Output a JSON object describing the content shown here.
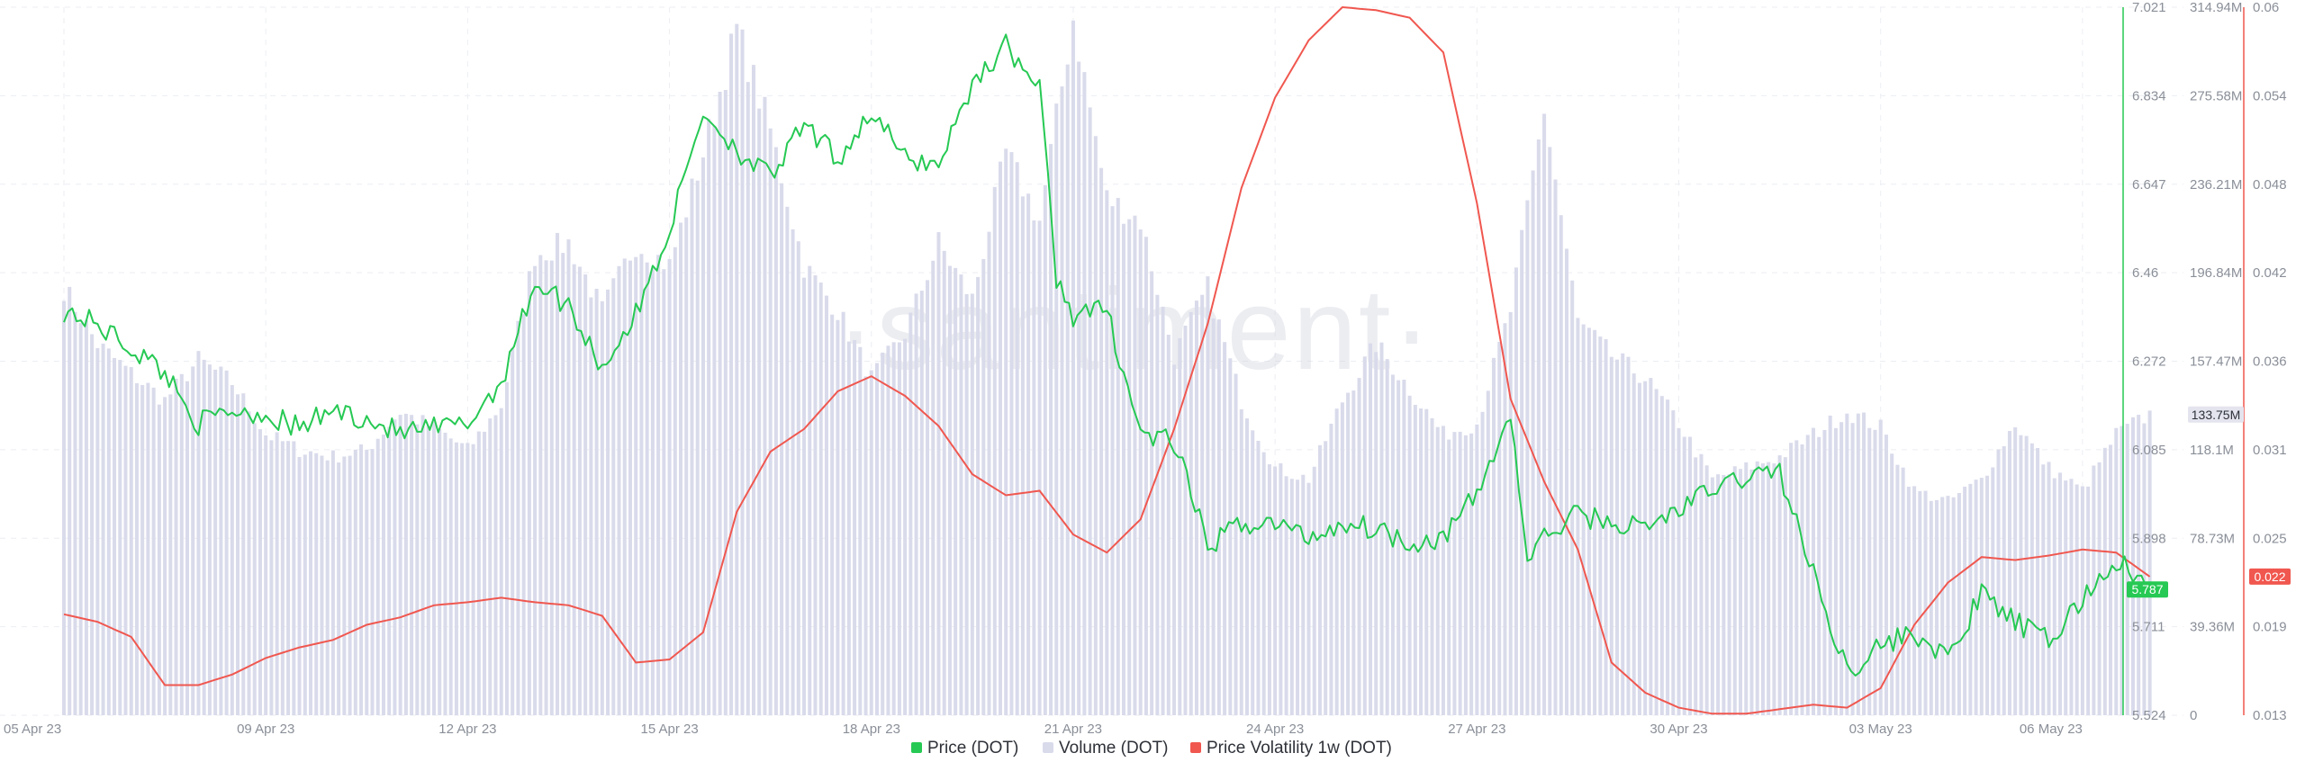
{
  "watermark": "·santiment·",
  "chart_data": {
    "type": "line",
    "x_tick_labels": [
      "05 Apr 23",
      "09 Apr 23",
      "12 Apr 23",
      "15 Apr 23",
      "18 Apr 23",
      "21 Apr 23",
      "24 Apr 23",
      "27 Apr 23",
      "30 Apr 23",
      "03 May 23",
      "06 May 23"
    ],
    "x_range": [
      "2023-04-05",
      "2023-05-06"
    ],
    "grid": true,
    "legend_position": "bottom-center",
    "series": [
      {
        "name": "Price (DOT)",
        "type": "line",
        "axis": "price",
        "color": "#26c953",
        "last_value_label": "5.787",
        "y_range": [
          5.524,
          7.021
        ],
        "y_tick_labels": [
          "5.524",
          "5.711",
          "5.898",
          "6.085",
          "6.272",
          "6.46",
          "6.647",
          "6.834",
          "7.021"
        ],
        "points": [
          [
            "2023-04-05",
            6.38
          ],
          [
            "2023-04-05T12:00",
            6.35
          ],
          [
            "2023-04-06",
            6.3
          ],
          [
            "2023-04-06T12:00",
            6.25
          ],
          [
            "2023-04-07",
            6.14
          ],
          [
            "2023-04-07T12:00",
            6.17
          ],
          [
            "2023-04-08",
            6.16
          ],
          [
            "2023-04-08T12:00",
            6.13
          ],
          [
            "2023-04-09",
            6.17
          ],
          [
            "2023-04-09T12:00",
            6.15
          ],
          [
            "2023-04-10",
            6.12
          ],
          [
            "2023-04-10T12:00",
            6.13
          ],
          [
            "2023-04-11",
            6.14
          ],
          [
            "2023-04-11T12:00",
            6.23
          ],
          [
            "2023-04-12",
            6.44
          ],
          [
            "2023-04-12T12:00",
            6.39
          ],
          [
            "2023-04-13",
            6.26
          ],
          [
            "2023-04-13T12:00",
            6.37
          ],
          [
            "2023-04-14",
            6.55
          ],
          [
            "2023-04-14T12:00",
            6.8
          ],
          [
            "2023-04-15",
            6.72
          ],
          [
            "2023-04-15T12:00",
            6.66
          ],
          [
            "2023-04-16",
            6.77
          ],
          [
            "2023-04-16T12:00",
            6.7
          ],
          [
            "2023-04-17",
            6.8
          ],
          [
            "2023-04-17T12:00",
            6.7
          ],
          [
            "2023-04-18",
            6.69
          ],
          [
            "2023-04-18T12:00",
            6.86
          ],
          [
            "2023-04-19",
            6.94
          ],
          [
            "2023-04-19T12:00",
            6.85
          ],
          [
            "2023-04-19T18:00",
            6.45
          ],
          [
            "2023-04-20",
            6.37
          ],
          [
            "2023-04-20T12:00",
            6.38
          ],
          [
            "2023-04-21",
            6.12
          ],
          [
            "2023-04-21T12:00",
            6.1
          ],
          [
            "2023-04-22",
            5.88
          ],
          [
            "2023-04-22T12:00",
            5.93
          ],
          [
            "2023-04-23",
            5.93
          ],
          [
            "2023-04-23T12:00",
            5.9
          ],
          [
            "2023-04-24",
            5.93
          ],
          [
            "2023-04-24T12:00",
            5.92
          ],
          [
            "2023-04-25",
            5.89
          ],
          [
            "2023-04-25T12:00",
            5.9
          ],
          [
            "2023-04-26",
            5.99
          ],
          [
            "2023-04-26T12:00",
            6.16
          ],
          [
            "2023-04-26T18:00",
            5.85
          ],
          [
            "2023-04-27",
            5.9
          ],
          [
            "2023-04-27T12:00",
            5.95
          ],
          [
            "2023-04-28",
            5.93
          ],
          [
            "2023-04-28T12:00",
            5.92
          ],
          [
            "2023-04-29",
            5.96
          ],
          [
            "2023-04-29T12:00",
            6.0
          ],
          [
            "2023-04-30",
            6.03
          ],
          [
            "2023-04-30T12:00",
            6.04
          ],
          [
            "2023-05-01",
            5.82
          ],
          [
            "2023-05-01T12:00",
            5.62
          ],
          [
            "2023-05-02",
            5.67
          ],
          [
            "2023-05-02T12:00",
            5.7
          ],
          [
            "2023-05-03",
            5.64
          ],
          [
            "2023-05-03T12:00",
            5.78
          ],
          [
            "2023-05-04",
            5.72
          ],
          [
            "2023-05-04T12:00",
            5.68
          ],
          [
            "2023-05-05",
            5.77
          ],
          [
            "2023-05-05T12:00",
            5.85
          ],
          [
            "2023-05-06",
            5.79
          ]
        ]
      },
      {
        "name": "Volume (DOT)",
        "type": "bar",
        "axis": "volume",
        "color": "#d9dbeb",
        "last_value_label": "133.75M",
        "y_range": [
          0,
          314940000
        ],
        "y_tick_labels": [
          "0",
          "39.36M",
          "78.73M",
          "118.1M",
          "157.47M",
          "196.84M",
          "236.21M",
          "275.58M",
          "314.94M"
        ],
        "points": [
          [
            "2023-04-05",
            190000000
          ],
          [
            "2023-04-05T12:00",
            165000000
          ],
          [
            "2023-04-06",
            152000000
          ],
          [
            "2023-04-06T12:00",
            140000000
          ],
          [
            "2023-04-07",
            158000000
          ],
          [
            "2023-04-07T12:00",
            148000000
          ],
          [
            "2023-04-08",
            125000000
          ],
          [
            "2023-04-08T12:00",
            118000000
          ],
          [
            "2023-04-09",
            115000000
          ],
          [
            "2023-04-09T12:00",
            118000000
          ],
          [
            "2023-04-10",
            135000000
          ],
          [
            "2023-04-10T12:00",
            128000000
          ],
          [
            "2023-04-11",
            118000000
          ],
          [
            "2023-04-11T12:00",
            138000000
          ],
          [
            "2023-04-12",
            205000000
          ],
          [
            "2023-04-12T12:00",
            210000000
          ],
          [
            "2023-04-13",
            180000000
          ],
          [
            "2023-04-13T12:00",
            210000000
          ],
          [
            "2023-04-14",
            200000000
          ],
          [
            "2023-04-14T12:00",
            250000000
          ],
          [
            "2023-04-15",
            305000000
          ],
          [
            "2023-04-15T12:00",
            260000000
          ],
          [
            "2023-04-16",
            200000000
          ],
          [
            "2023-04-16T12:00",
            180000000
          ],
          [
            "2023-04-17",
            150000000
          ],
          [
            "2023-04-17T12:00",
            170000000
          ],
          [
            "2023-04-18",
            210000000
          ],
          [
            "2023-04-18T12:00",
            185000000
          ],
          [
            "2023-04-19",
            250000000
          ],
          [
            "2023-04-19T12:00",
            220000000
          ],
          [
            "2023-04-20",
            310000000
          ],
          [
            "2023-04-20T12:00",
            230000000
          ],
          [
            "2023-04-21",
            220000000
          ],
          [
            "2023-04-21T12:00",
            160000000
          ],
          [
            "2023-04-22",
            190000000
          ],
          [
            "2023-04-22T12:00",
            140000000
          ],
          [
            "2023-04-23",
            110000000
          ],
          [
            "2023-04-23T12:00",
            105000000
          ],
          [
            "2023-04-24",
            140000000
          ],
          [
            "2023-04-24T12:00",
            165000000
          ],
          [
            "2023-04-25",
            145000000
          ],
          [
            "2023-04-25T12:00",
            125000000
          ],
          [
            "2023-04-26",
            130000000
          ],
          [
            "2023-04-26T12:00",
            180000000
          ],
          [
            "2023-04-27",
            270000000
          ],
          [
            "2023-04-27T12:00",
            175000000
          ],
          [
            "2023-04-28",
            160000000
          ],
          [
            "2023-04-28T12:00",
            150000000
          ],
          [
            "2023-04-29",
            130000000
          ],
          [
            "2023-04-29T12:00",
            105000000
          ],
          [
            "2023-04-30",
            110000000
          ],
          [
            "2023-04-30T12:00",
            115000000
          ],
          [
            "2023-05-01",
            125000000
          ],
          [
            "2023-05-01T12:00",
            135000000
          ],
          [
            "2023-05-02",
            128000000
          ],
          [
            "2023-05-02T12:00",
            100000000
          ],
          [
            "2023-05-03",
            95000000
          ],
          [
            "2023-05-03T12:00",
            105000000
          ],
          [
            "2023-05-04",
            130000000
          ],
          [
            "2023-05-04T12:00",
            110000000
          ],
          [
            "2023-05-05",
            100000000
          ],
          [
            "2023-05-05T12:00",
            125000000
          ],
          [
            "2023-05-06",
            133750000
          ]
        ]
      },
      {
        "name": "Price Volatility 1w (DOT)",
        "type": "line",
        "axis": "volatility",
        "color": "#f0574f",
        "last_value_label": "0.022",
        "y_range": [
          0.013,
          0.06
        ],
        "y_tick_labels": [
          "0.013",
          "0.019",
          "0.025",
          "0.031",
          "0.036",
          "0.042",
          "0.048",
          "0.054",
          "0.06"
        ],
        "points": [
          [
            "2023-04-05",
            0.0197
          ],
          [
            "2023-04-05T12:00",
            0.0192
          ],
          [
            "2023-04-06",
            0.0182
          ],
          [
            "2023-04-06T12:00",
            0.015
          ],
          [
            "2023-04-07",
            0.015
          ],
          [
            "2023-04-07T12:00",
            0.0157
          ],
          [
            "2023-04-08",
            0.0168
          ],
          [
            "2023-04-08T12:00",
            0.0175
          ],
          [
            "2023-04-09",
            0.018
          ],
          [
            "2023-04-09T12:00",
            0.019
          ],
          [
            "2023-04-10",
            0.0195
          ],
          [
            "2023-04-10T12:00",
            0.0203
          ],
          [
            "2023-04-11",
            0.0205
          ],
          [
            "2023-04-11T12:00",
            0.0208
          ],
          [
            "2023-04-12",
            0.0205
          ],
          [
            "2023-04-12T12:00",
            0.0203
          ],
          [
            "2023-04-13",
            0.0196
          ],
          [
            "2023-04-13T12:00",
            0.0165
          ],
          [
            "2023-04-14",
            0.0167
          ],
          [
            "2023-04-14T12:00",
            0.0185
          ],
          [
            "2023-04-15",
            0.0265
          ],
          [
            "2023-04-15T12:00",
            0.0305
          ],
          [
            "2023-04-16",
            0.032
          ],
          [
            "2023-04-16T12:00",
            0.0345
          ],
          [
            "2023-04-17",
            0.0355
          ],
          [
            "2023-04-17T12:00",
            0.0342
          ],
          [
            "2023-04-18",
            0.0322
          ],
          [
            "2023-04-18T12:00",
            0.029
          ],
          [
            "2023-04-19",
            0.0276
          ],
          [
            "2023-04-19T12:00",
            0.0279
          ],
          [
            "2023-04-20",
            0.025
          ],
          [
            "2023-04-20T12:00",
            0.0238
          ],
          [
            "2023-04-21",
            0.026
          ],
          [
            "2023-04-21T12:00",
            0.032
          ],
          [
            "2023-04-22",
            0.039
          ],
          [
            "2023-04-22T12:00",
            0.048
          ],
          [
            "2023-04-23",
            0.054
          ],
          [
            "2023-04-23T12:00",
            0.0578
          ],
          [
            "2023-04-24",
            0.06
          ],
          [
            "2023-04-24T12:00",
            0.0598
          ],
          [
            "2023-04-25",
            0.0593
          ],
          [
            "2023-04-25T12:00",
            0.057
          ],
          [
            "2023-04-26",
            0.047
          ],
          [
            "2023-04-26T12:00",
            0.034
          ],
          [
            "2023-04-27",
            0.0285
          ],
          [
            "2023-04-27T12:00",
            0.024
          ],
          [
            "2023-04-28",
            0.0165
          ],
          [
            "2023-04-28T12:00",
            0.0145
          ],
          [
            "2023-04-29",
            0.0135
          ],
          [
            "2023-04-29T12:00",
            0.0131
          ],
          [
            "2023-04-30",
            0.0131
          ],
          [
            "2023-04-30T12:00",
            0.0134
          ],
          [
            "2023-05-01",
            0.0137
          ],
          [
            "2023-05-01T12:00",
            0.0135
          ],
          [
            "2023-05-02",
            0.0148
          ],
          [
            "2023-05-02T12:00",
            0.019
          ],
          [
            "2023-05-03",
            0.0218
          ],
          [
            "2023-05-03T12:00",
            0.0235
          ],
          [
            "2023-05-04",
            0.0233
          ],
          [
            "2023-05-04T12:00",
            0.0236
          ],
          [
            "2023-05-05",
            0.024
          ],
          [
            "2023-05-05T12:00",
            0.0238
          ],
          [
            "2023-05-06",
            0.0222
          ]
        ]
      }
    ]
  }
}
